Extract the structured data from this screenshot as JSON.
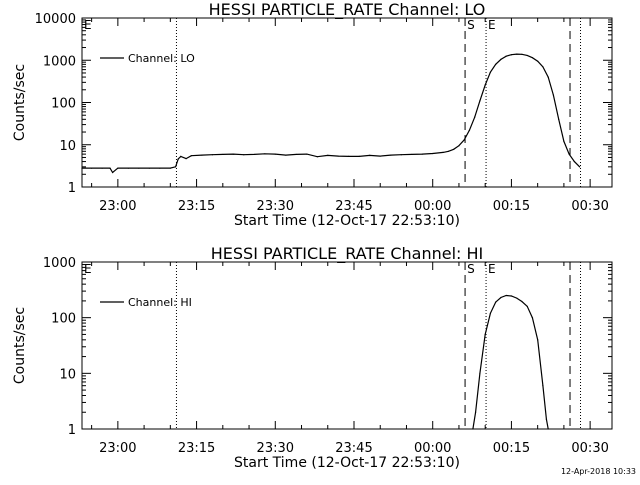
{
  "stamp": "12-Apr-2018 10:33",
  "chart_data": [
    {
      "type": "line",
      "title": "HESSI PARTICLE_RATE Channel: LO",
      "xlabel": "Start Time (12-Oct-17 22:53:10)",
      "ylabel": "Counts/sec",
      "y_scale": "log",
      "ylim": [
        1,
        10000
      ],
      "xlim": [
        "22:53:10",
        "00:34:10"
      ],
      "x_ticks": [
        "23:00",
        "23:15",
        "23:30",
        "23:45",
        "00:00",
        "00:15",
        "00:30"
      ],
      "y_ticks": [
        "1",
        "10",
        "100",
        "1000",
        "10000"
      ],
      "legend": {
        "position": "top-left",
        "entries": [
          "Channel: LO"
        ]
      },
      "markers": [
        {
          "time": "23:11:10",
          "style": "dotted",
          "label": ""
        },
        {
          "time": "00:06:10",
          "style": "dashed",
          "label": "S"
        },
        {
          "time": "00:10:10",
          "style": "dotted",
          "label": "E"
        },
        {
          "time": "00:26:10",
          "style": "dashed",
          "label": ""
        },
        {
          "time": "00:28:10",
          "style": "dotted",
          "label": ""
        }
      ],
      "corner_labels": [
        "E"
      ],
      "series": [
        {
          "name": "Channel: LO",
          "x": [
            "22:53:10",
            "22:55",
            "22:57",
            "22:58:30",
            "22:59",
            "23:00",
            "23:02",
            "23:04",
            "23:06",
            "23:08",
            "23:10",
            "23:11",
            "23:11:30",
            "23:12",
            "23:13",
            "23:14",
            "23:16",
            "23:18",
            "23:20",
            "23:22",
            "23:24",
            "23:26",
            "23:28",
            "23:30",
            "23:32",
            "23:34",
            "23:36",
            "23:38",
            "23:40",
            "23:42",
            "23:44",
            "23:46",
            "23:48",
            "23:50",
            "23:52",
            "23:54",
            "23:56",
            "23:58",
            "00:00",
            "00:02",
            "00:03",
            "00:04",
            "00:05",
            "00:06",
            "00:07",
            "00:08",
            "00:09",
            "00:10",
            "00:11",
            "00:12",
            "00:13",
            "00:14",
            "00:15",
            "00:16",
            "00:17",
            "00:18",
            "00:19",
            "00:20",
            "00:21",
            "00:22",
            "00:23",
            "00:24",
            "00:25",
            "00:26",
            "00:27",
            "00:28"
          ],
          "values": [
            2.8,
            2.8,
            2.8,
            2.8,
            2.2,
            2.8,
            2.8,
            2.8,
            2.8,
            2.8,
            2.8,
            3.0,
            4.6,
            5.3,
            4.7,
            5.5,
            5.7,
            5.8,
            5.9,
            6.0,
            5.8,
            5.9,
            6.1,
            6.0,
            5.7,
            5.9,
            6.0,
            5.2,
            5.6,
            5.4,
            5.3,
            5.3,
            5.6,
            5.4,
            5.7,
            5.8,
            5.9,
            6.0,
            6.2,
            6.6,
            7.0,
            7.8,
            9.5,
            13,
            22,
            45,
            110,
            260,
            520,
            800,
            1050,
            1250,
            1350,
            1400,
            1380,
            1300,
            1150,
            950,
            700,
            400,
            150,
            40,
            12,
            6,
            4,
            3
          ]
        }
      ]
    },
    {
      "type": "line",
      "title": "HESSI PARTICLE_RATE Channel: HI",
      "xlabel": "Start Time (12-Oct-17 22:53:10)",
      "ylabel": "Counts/sec",
      "y_scale": "log",
      "ylim": [
        1,
        1000
      ],
      "xlim": [
        "22:53:10",
        "00:34:10"
      ],
      "x_ticks": [
        "23:00",
        "23:15",
        "23:30",
        "23:45",
        "00:00",
        "00:15",
        "00:30"
      ],
      "y_ticks": [
        "1",
        "10",
        "100",
        "1000"
      ],
      "legend": {
        "position": "top-left",
        "entries": [
          "Channel: HI"
        ]
      },
      "markers": [
        {
          "time": "23:11:10",
          "style": "dotted",
          "label": ""
        },
        {
          "time": "00:06:10",
          "style": "dashed",
          "label": "S"
        },
        {
          "time": "00:10:10",
          "style": "dotted",
          "label": "E"
        },
        {
          "time": "00:26:10",
          "style": "dashed",
          "label": ""
        },
        {
          "time": "00:28:10",
          "style": "dotted",
          "label": ""
        }
      ],
      "corner_labels": [
        "E"
      ],
      "series": [
        {
          "name": "Channel: HI",
          "x": [
            "00:07:40",
            "00:08:10",
            "00:09",
            "00:10",
            "00:11",
            "00:12",
            "00:13",
            "00:14",
            "00:15",
            "00:16",
            "00:17",
            "00:18",
            "00:19",
            "00:20",
            "00:21",
            "00:21:40",
            "00:22"
          ],
          "values": [
            1,
            2,
            10,
            50,
            120,
            190,
            230,
            250,
            245,
            225,
            195,
            160,
            100,
            40,
            6,
            1.5,
            1
          ]
        }
      ]
    }
  ]
}
